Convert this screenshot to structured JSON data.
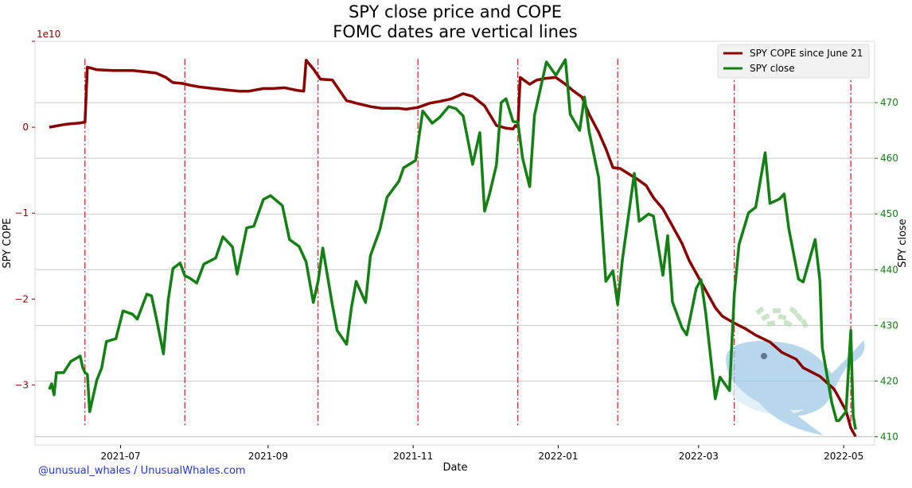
{
  "chart_data": {
    "type": "line",
    "title": "SPY close price and COPE",
    "subtitle": "FOMC dates are vertical lines",
    "xlabel": "Date",
    "ylabel_left": "SPY COPE",
    "ylabel_right": "SPY close",
    "left_offset_label": "1e10",
    "left_ylim": [
      -3.7,
      1.0
    ],
    "left_ticks": [
      0,
      -1,
      -2,
      -3
    ],
    "left_tick_labels": [
      "0",
      "−1",
      "−2",
      "−3"
    ],
    "right_ylim": [
      408.5,
      481
    ],
    "right_ticks": [
      410,
      420,
      430,
      440,
      450,
      460,
      470
    ],
    "right_tick_labels": [
      "410",
      "420",
      "430",
      "440",
      "450",
      "460",
      "470"
    ],
    "xlim": [
      "2021-05-26",
      "2022-05-14"
    ],
    "x_ticks": [
      "2021-07-01",
      "2021-09-01",
      "2021-11-01",
      "2022-01-01",
      "2022-03-01",
      "2022-05-01"
    ],
    "x_tick_labels": [
      "2021-07",
      "2021-09",
      "2021-11",
      "2022-01",
      "2022-03",
      "2022-05"
    ],
    "grid": "horizontal, right axis",
    "legend_position": "top-right",
    "fomc_dates": [
      "2021-06-16",
      "2021-07-28",
      "2021-09-22",
      "2021-11-03",
      "2021-12-15",
      "2022-01-26",
      "2022-03-16",
      "2022-05-04"
    ],
    "series": [
      {
        "name": "SPY COPE since June 21",
        "axis": "left",
        "color": "#8b0000",
        "x": [
          "2021-06-01",
          "2021-06-03",
          "2021-06-07",
          "2021-06-10",
          "2021-06-14",
          "2021-06-16",
          "2021-06-17",
          "2021-06-21",
          "2021-06-28",
          "2021-07-06",
          "2021-07-13",
          "2021-07-16",
          "2021-07-20",
          "2021-07-23",
          "2021-07-27",
          "2021-07-30",
          "2021-08-03",
          "2021-08-09",
          "2021-08-16",
          "2021-08-20",
          "2021-08-24",
          "2021-08-30",
          "2021-09-03",
          "2021-09-08",
          "2021-09-13",
          "2021-09-16",
          "2021-09-17",
          "2021-09-20",
          "2021-09-23",
          "2021-09-28",
          "2021-10-04",
          "2021-10-08",
          "2021-10-14",
          "2021-10-19",
          "2021-10-22",
          "2021-10-26",
          "2021-10-29",
          "2021-11-03",
          "2021-11-08",
          "2021-11-12",
          "2021-11-17",
          "2021-11-22",
          "2021-11-26",
          "2021-12-01",
          "2021-12-06",
          "2021-12-10",
          "2021-12-13",
          "2021-12-14",
          "2021-12-15",
          "2021-12-16",
          "2021-12-20",
          "2021-12-23",
          "2021-12-27",
          "2021-12-31",
          "2022-01-04",
          "2022-01-07",
          "2022-01-11",
          "2022-01-14",
          "2022-01-18",
          "2022-01-21",
          "2022-01-24",
          "2022-01-27",
          "2022-01-31",
          "2022-02-03",
          "2022-02-07",
          "2022-02-10",
          "2022-02-14",
          "2022-02-17",
          "2022-02-22",
          "2022-02-25",
          "2022-03-01",
          "2022-03-04",
          "2022-03-08",
          "2022-03-11",
          "2022-03-16",
          "2022-03-21",
          "2022-03-25",
          "2022-03-31",
          "2022-04-05",
          "2022-04-11",
          "2022-04-14",
          "2022-04-21",
          "2022-04-27",
          "2022-05-02",
          "2022-05-04",
          "2022-05-06"
        ],
        "values": [
          0.0,
          0.01,
          0.03,
          0.04,
          0.05,
          0.06,
          0.7,
          0.67,
          0.66,
          0.66,
          0.64,
          0.63,
          0.58,
          0.52,
          0.51,
          0.49,
          0.47,
          0.45,
          0.43,
          0.42,
          0.42,
          0.45,
          0.45,
          0.46,
          0.43,
          0.42,
          0.78,
          0.68,
          0.56,
          0.55,
          0.31,
          0.28,
          0.24,
          0.22,
          0.22,
          0.22,
          0.21,
          0.23,
          0.28,
          0.3,
          0.33,
          0.39,
          0.36,
          0.25,
          0.02,
          -0.01,
          -0.02,
          0.02,
          0.0,
          0.58,
          0.5,
          0.55,
          0.57,
          0.58,
          0.5,
          0.43,
          0.35,
          0.15,
          -0.06,
          -0.25,
          -0.47,
          -0.48,
          -0.55,
          -0.6,
          -0.68,
          -0.82,
          -0.95,
          -1.1,
          -1.35,
          -1.55,
          -1.75,
          -1.9,
          -2.1,
          -2.2,
          -2.28,
          -2.35,
          -2.42,
          -2.5,
          -2.62,
          -2.7,
          -2.8,
          -2.9,
          -3.05,
          -3.3,
          -3.5,
          -3.6
        ]
      },
      {
        "name": "SPY close",
        "axis": "right",
        "color": "#138013",
        "x": [
          "2021-06-01",
          "2021-06-02",
          "2021-06-03",
          "2021-06-04",
          "2021-06-07",
          "2021-06-10",
          "2021-06-14",
          "2021-06-15",
          "2021-06-16",
          "2021-06-17",
          "2021-06-18",
          "2021-06-21",
          "2021-06-23",
          "2021-06-25",
          "2021-06-29",
          "2021-07-02",
          "2021-07-06",
          "2021-07-08",
          "2021-07-12",
          "2021-07-14",
          "2021-07-16",
          "2021-07-19",
          "2021-07-21",
          "2021-07-23",
          "2021-07-26",
          "2021-07-28",
          "2021-07-30",
          "2021-08-02",
          "2021-08-05",
          "2021-08-10",
          "2021-08-13",
          "2021-08-17",
          "2021-08-19",
          "2021-08-23",
          "2021-08-26",
          "2021-08-30",
          "2021-09-02",
          "2021-09-07",
          "2021-09-10",
          "2021-09-14",
          "2021-09-17",
          "2021-09-20",
          "2021-09-22",
          "2021-09-24",
          "2021-09-28",
          "2021-09-30",
          "2021-10-04",
          "2021-10-06",
          "2021-10-08",
          "2021-10-12",
          "2021-10-14",
          "2021-10-18",
          "2021-10-21",
          "2021-10-26",
          "2021-10-28",
          "2021-11-02",
          "2021-11-05",
          "2021-11-09",
          "2021-11-12",
          "2021-11-16",
          "2021-11-19",
          "2021-11-22",
          "2021-11-26",
          "2021-11-29",
          "2021-12-01",
          "2021-12-03",
          "2021-12-06",
          "2021-12-08",
          "2021-12-10",
          "2021-12-13",
          "2021-12-15",
          "2021-12-17",
          "2021-12-20",
          "2021-12-22",
          "2021-12-27",
          "2021-12-31",
          "2022-01-04",
          "2022-01-06",
          "2022-01-10",
          "2022-01-12",
          "2022-01-14",
          "2022-01-18",
          "2022-01-21",
          "2022-01-24",
          "2022-01-26",
          "2022-01-28",
          "2022-02-02",
          "2022-02-04",
          "2022-02-08",
          "2022-02-10",
          "2022-02-14",
          "2022-02-16",
          "2022-02-18",
          "2022-02-22",
          "2022-02-24",
          "2022-02-28",
          "2022-03-02",
          "2022-03-04",
          "2022-03-08",
          "2022-03-10",
          "2022-03-14",
          "2022-03-16",
          "2022-03-18",
          "2022-03-22",
          "2022-03-25",
          "2022-03-29",
          "2022-03-31",
          "2022-04-04",
          "2022-04-06",
          "2022-04-08",
          "2022-04-12",
          "2022-04-14",
          "2022-04-19",
          "2022-04-21",
          "2022-04-22",
          "2022-04-26",
          "2022-04-28",
          "2022-04-29",
          "2022-05-02",
          "2022-05-04",
          "2022-05-05",
          "2022-05-06"
        ],
        "values": [
          418.5,
          419.5,
          417.5,
          421.5,
          421.5,
          423.5,
          424.5,
          422.5,
          421.5,
          421.2,
          414.5,
          420.2,
          422.3,
          427.1,
          427.6,
          432.6,
          432.0,
          431.1,
          435.6,
          435.3,
          431.3,
          424.9,
          434.6,
          440.2,
          441.2,
          438.9,
          438.5,
          437.6,
          441.0,
          442.1,
          445.9,
          444.1,
          439.2,
          447.5,
          447.8,
          452.6,
          453.3,
          451.5,
          445.4,
          444.2,
          441.4,
          434.1,
          437.9,
          443.9,
          433.7,
          429.1,
          426.6,
          433.1,
          437.9,
          434.1,
          442.5,
          447.2,
          453.0,
          455.9,
          458.3,
          459.6,
          468.5,
          466.3,
          467.3,
          469.3,
          468.9,
          467.6,
          458.9,
          464.6,
          450.5,
          453.4,
          458.8,
          470.0,
          470.7,
          466.6,
          466.5,
          460.0,
          454.9,
          467.7,
          477.3,
          474.9,
          477.7,
          467.9,
          465.0,
          471.0,
          464.7,
          456.5,
          437.9,
          439.8,
          433.7,
          441.9,
          457.3,
          448.7,
          450.0,
          449.6,
          439.0,
          446.1,
          434.2,
          429.6,
          428.3,
          436.6,
          438.2,
          432.2,
          416.8,
          420.7,
          418.3,
          435.6,
          444.5,
          450.2,
          451.2,
          461.0,
          451.9,
          452.7,
          453.6,
          447.2,
          438.3,
          437.8,
          445.4,
          438.0,
          426.0,
          416.1,
          412.9,
          412.9,
          414.5,
          429.1,
          413.8,
          411.3
        ]
      }
    ]
  },
  "watermark": "@unusual_whales / UnusualWhales.com"
}
